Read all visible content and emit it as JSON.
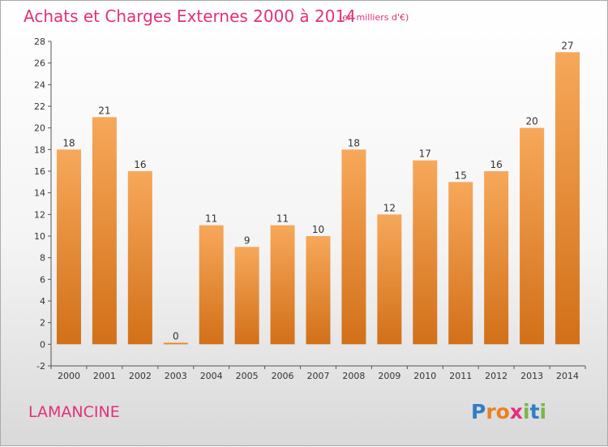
{
  "title": "Achats et Charges Externes 2000 à 2014",
  "subtitle": "(en milliers d'€)",
  "commune": "LAMANCINE",
  "logo": {
    "letters": [
      "P",
      "r",
      "o",
      "x",
      "i",
      "t",
      "i"
    ],
    "colors": [
      "#2f7ec8",
      "#e8821e",
      "#e8821e",
      "#e3307a",
      "#7ab648",
      "#2f7ec8",
      "#7ab648"
    ]
  },
  "colors": {
    "bar_light": "#f7a85a",
    "bar_dark": "#d27018",
    "title": "#e3307a"
  },
  "chart_data": {
    "type": "bar",
    "categories": [
      "2000",
      "2001",
      "2002",
      "2003",
      "2004",
      "2005",
      "2006",
      "2007",
      "2008",
      "2009",
      "2010",
      "2011",
      "2012",
      "2013",
      "2014"
    ],
    "values": [
      18,
      21,
      16,
      0,
      11,
      9,
      11,
      10,
      18,
      12,
      17,
      15,
      16,
      20,
      27
    ],
    "data_labels": [
      "18",
      "21",
      "16",
      "0",
      "11",
      "9",
      "11",
      "10",
      "18",
      "12",
      "17",
      "15",
      "16",
      "20",
      "27"
    ],
    "yticks": [
      "-2",
      "0",
      "2",
      "4",
      "6",
      "8",
      "10",
      "12",
      "14",
      "16",
      "18",
      "20",
      "22",
      "24",
      "26",
      "28"
    ],
    "ylim": [
      -2,
      28
    ],
    "grid": false,
    "legend": false
  }
}
